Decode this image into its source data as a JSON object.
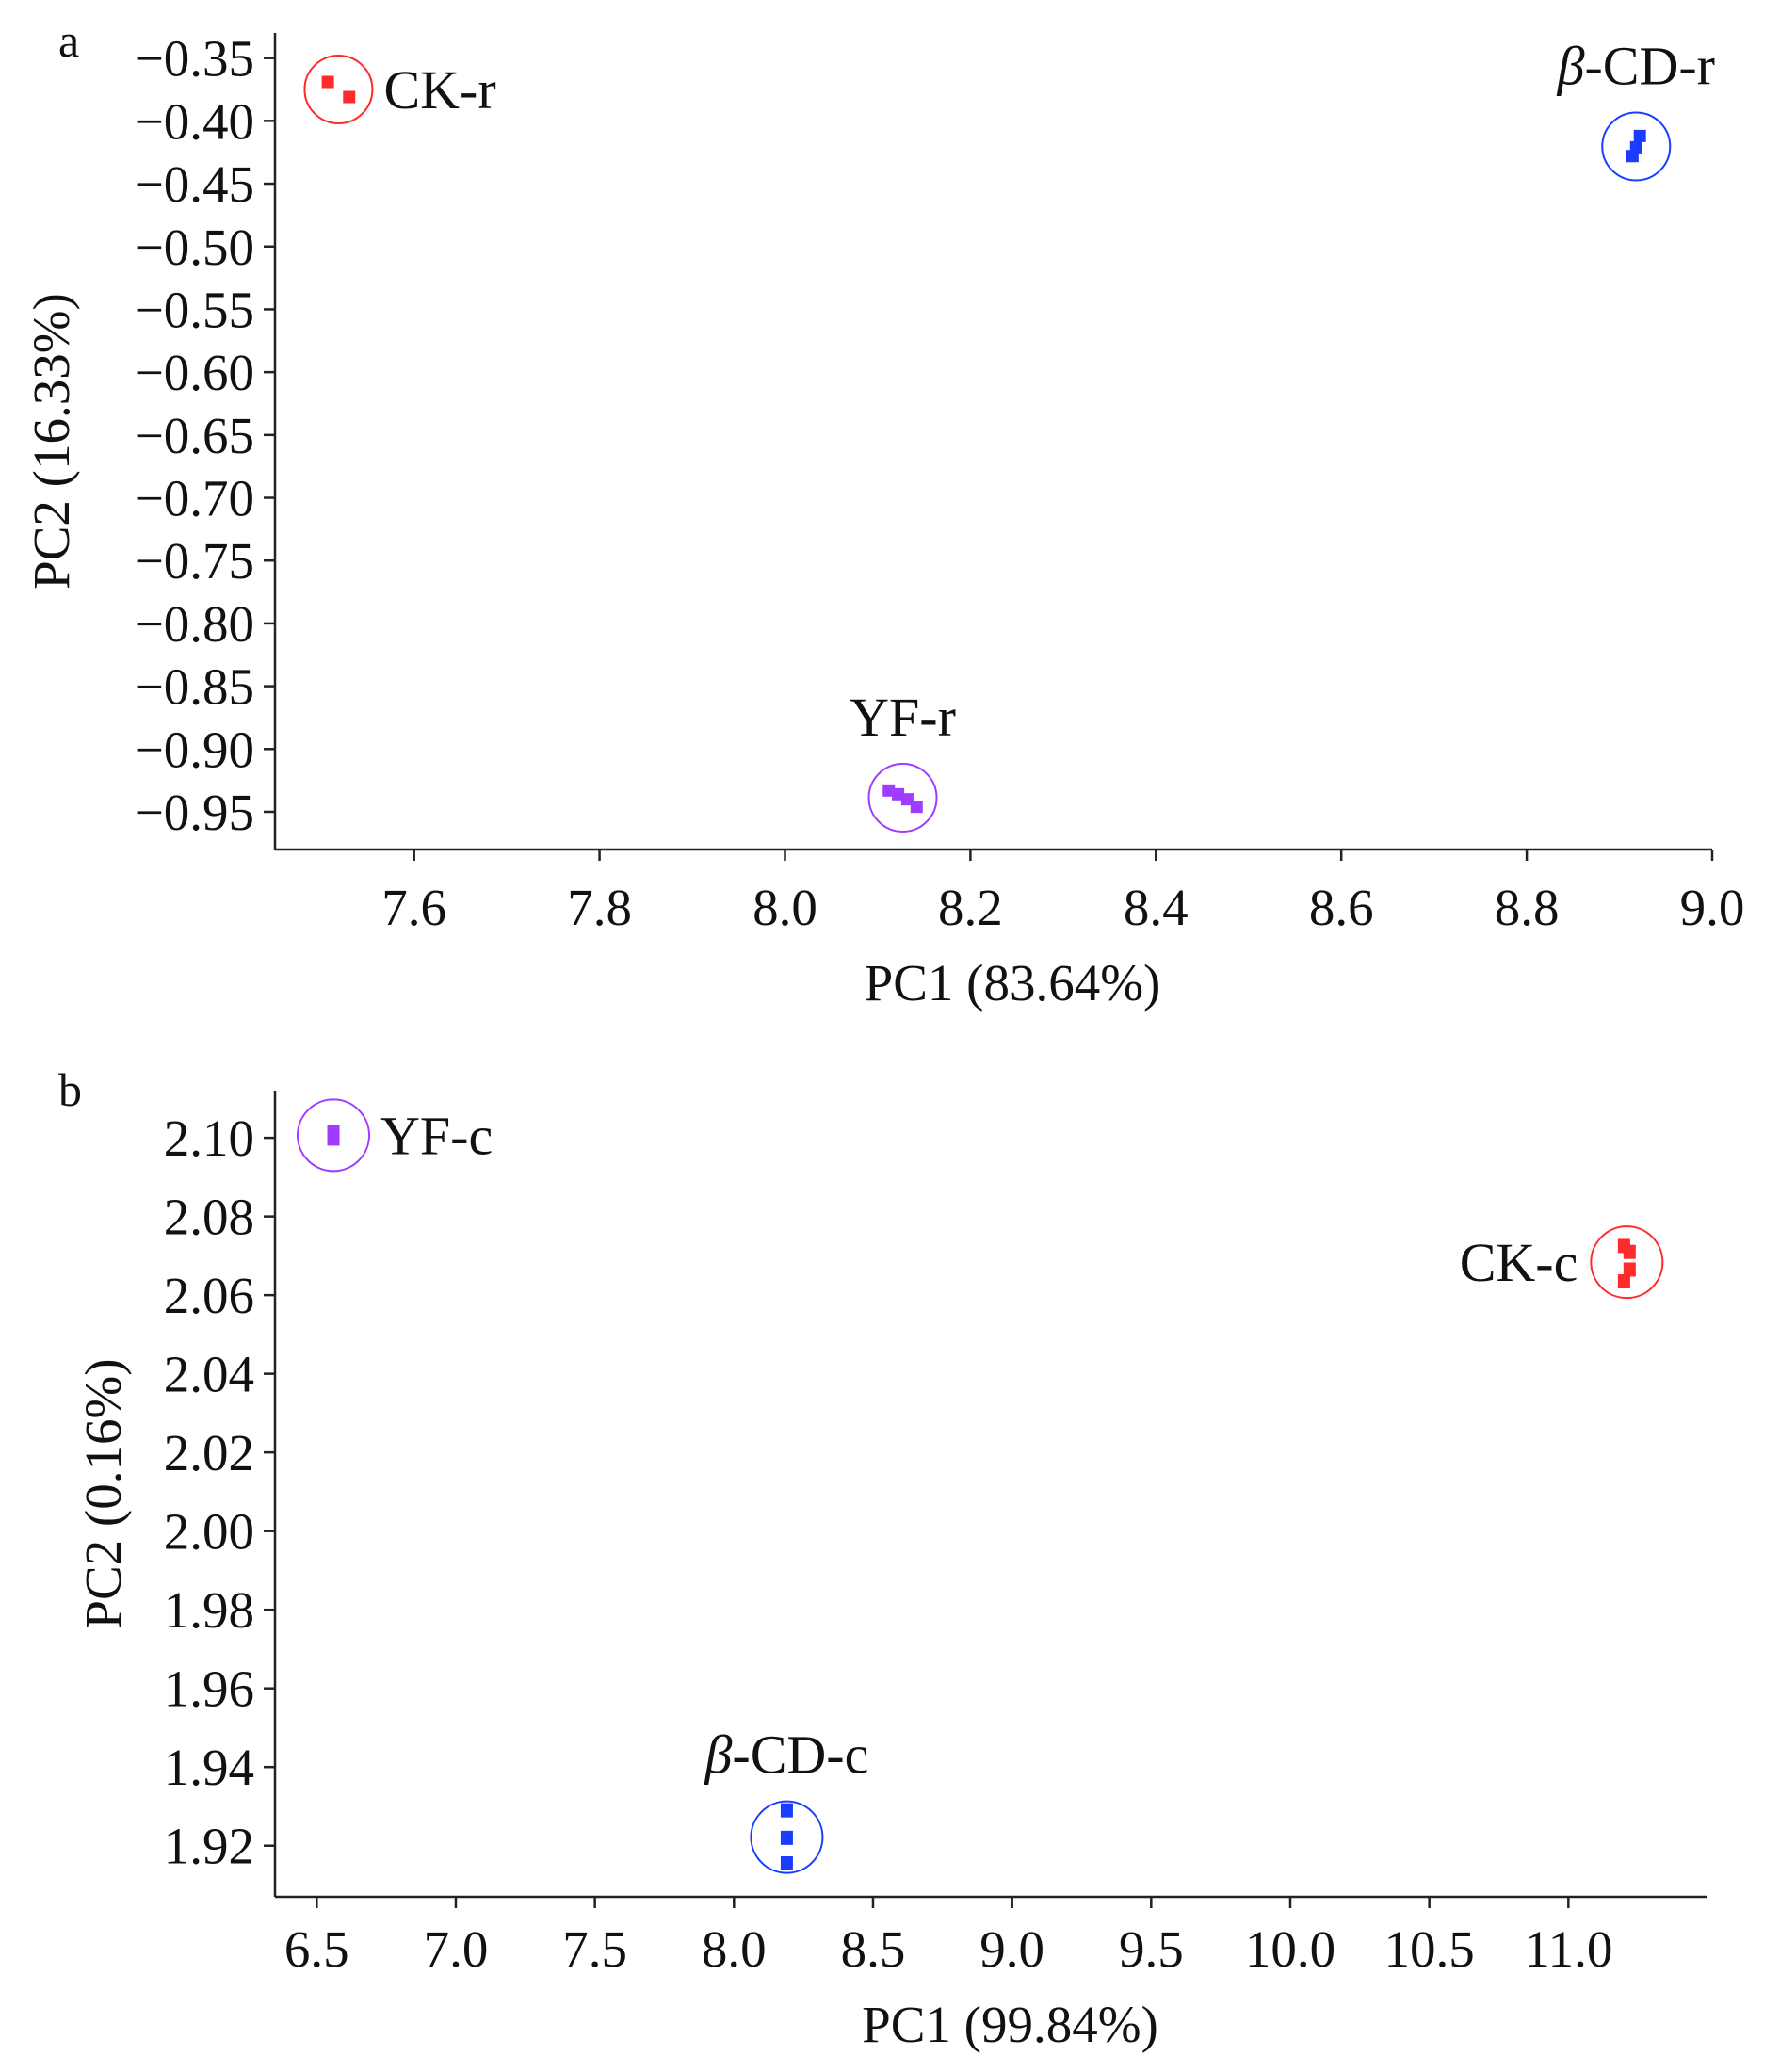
{
  "colors": {
    "CK": "#ff2a2a",
    "beta_CD": "#1a3cff",
    "YF": "#a03cff",
    "axis": "#222222"
  },
  "chart_data": [
    {
      "panel": "a",
      "type": "scatter",
      "xlabel": "PC1 (83.64%)",
      "ylabel": "PC2 (16.33%)",
      "xlim": [
        7.45,
        9.0
      ],
      "ylim": [
        -0.98,
        -0.33
      ],
      "xticks": [
        "7.6",
        "7.8",
        "8.0",
        "8.2",
        "8.4",
        "8.6",
        "8.8",
        "9.0"
      ],
      "yticks": [
        "−0.35",
        "−0.40",
        "−0.45",
        "−0.50",
        "−0.55",
        "−0.60",
        "−0.65",
        "−0.70",
        "−0.75",
        "−0.80",
        "−0.85",
        "−0.90",
        "−0.95"
      ],
      "grid": false,
      "series": [
        {
          "name": "CK-r",
          "color_key": "CK",
          "label_side": "right",
          "points": [
            [
              7.507,
              -0.369
            ],
            [
              7.53,
              -0.381
            ]
          ]
        },
        {
          "name": "β-CD-r",
          "color_key": "beta_CD",
          "label_side": "above",
          "points": [
            [
              8.922,
              -0.412
            ],
            [
              8.918,
              -0.421
            ],
            [
              8.914,
              -0.428
            ]
          ]
        },
        {
          "name": "YF-r",
          "color_key": "YF",
          "label_side": "above",
          "points": [
            [
              8.112,
              -0.933
            ],
            [
              8.122,
              -0.936
            ],
            [
              8.132,
              -0.94
            ],
            [
              8.142,
              -0.946
            ]
          ]
        }
      ]
    },
    {
      "panel": "b",
      "type": "scatter",
      "xlabel": "PC1 (99.84%)",
      "ylabel": "PC2 (0.16%)",
      "xlim": [
        6.35,
        11.5
      ],
      "ylim": [
        1.907,
        2.112
      ],
      "xticks": [
        "6.5",
        "7.0",
        "7.5",
        "8.0",
        "8.5",
        "9.0",
        "9.5",
        "10.0",
        "10.5",
        "11.0"
      ],
      "yticks": [
        "2.10",
        "2.08",
        "2.06",
        "2.04",
        "2.02",
        "2.00",
        "1.98",
        "1.96",
        "1.94",
        "1.92"
      ],
      "grid": false,
      "series": [
        {
          "name": "YF-c",
          "color_key": "YF",
          "label_side": "right",
          "points": [
            [
              6.56,
              2.1015
            ],
            [
              6.56,
              2.0998
            ]
          ]
        },
        {
          "name": "CK-c",
          "color_key": "CK",
          "label_side": "left",
          "points": [
            [
              11.2,
              2.0725
            ],
            [
              11.22,
              2.071
            ],
            [
              11.22,
              2.0665
            ],
            [
              11.2,
              2.0635
            ]
          ]
        },
        {
          "name": "β-CD-c",
          "color_key": "beta_CD",
          "label_side": "above",
          "points": [
            [
              8.19,
              1.929
            ],
            [
              8.19,
              1.922
            ],
            [
              8.19,
              1.9155
            ]
          ]
        }
      ]
    }
  ]
}
